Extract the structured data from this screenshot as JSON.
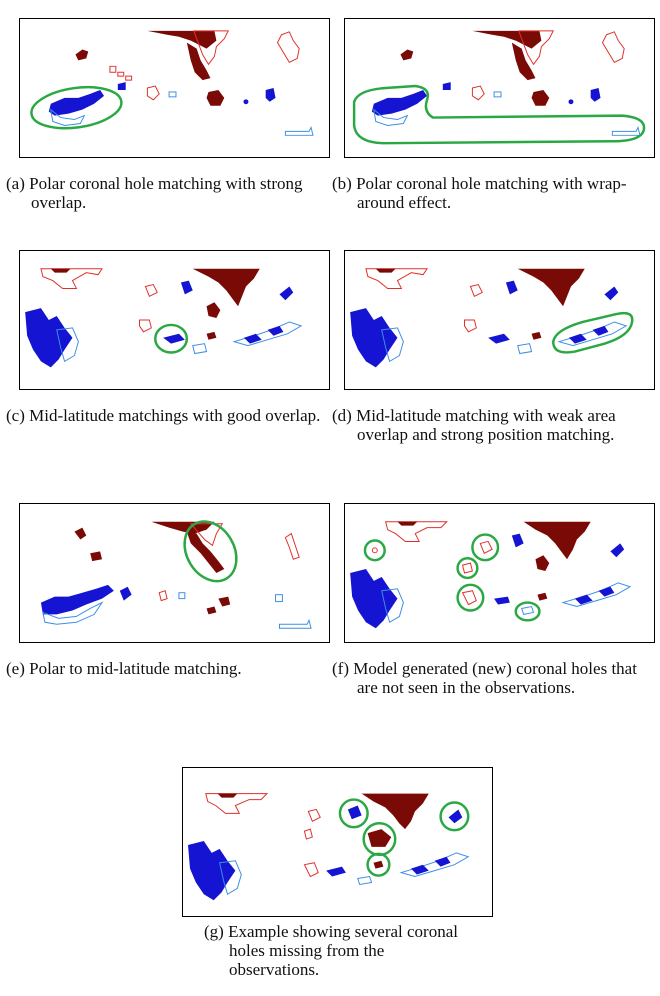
{
  "figure": {
    "panels": [
      {
        "id": "a",
        "caption": "(a) Polar coronal hole matching with strong overlap."
      },
      {
        "id": "b",
        "caption": "(b) Polar coronal hole matching with wrap-around effect."
      },
      {
        "id": "c",
        "caption": "(c) Mid-latitude matchings with good overlap."
      },
      {
        "id": "d",
        "caption": "(d) Mid-latitude matching with weak area overlap and strong position matching."
      },
      {
        "id": "e",
        "caption": "(e) Polar to mid-latitude matching."
      },
      {
        "id": "f",
        "caption": "(f) Model generated (new) coronal holes that are not seen in the observations."
      },
      {
        "id": "g",
        "caption": "(g) Example showing several coronal holes missing from the observations."
      }
    ],
    "colors": {
      "model_outline": "#e0302a",
      "model_fill": "#7a0a06",
      "obs_outline": "#3b8fe6",
      "obs_fill": "#1414d2",
      "match_circle": "#2aa844"
    }
  }
}
